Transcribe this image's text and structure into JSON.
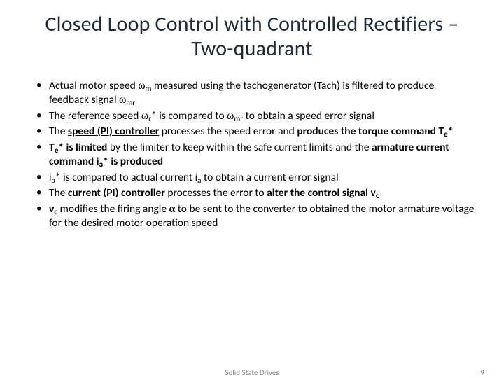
{
  "title": "Closed Loop Control with Controlled Rectifiers – Two-quadrant",
  "bullets": {
    "b1a": "Actual motor speed ",
    "b1_sym1": "ω",
    "b1_sub1": "m",
    "b1b": " measured using the tachogenerator (Tach) is filtered to produce feedback signal ",
    "b1_sym2": "ω",
    "b1_sub2": "mr",
    "b2a": "The reference speed ",
    "b2_sym1": "ω",
    "b2_sub1": "r",
    "b2_star": "*",
    "b2b": " is compared to ",
    "b2_sym2": "ω",
    "b2_sub2": "mr",
    "b2c": " to obtain a speed error signal",
    "b3a": "The ",
    "b3_bu": "speed (PI) controller",
    "b3b": " processes the speed error and ",
    "b3_b2": "produces the torque command ",
    "b3_b3": "T",
    "b3_sub": "e",
    "b3_b4": "*",
    "b4_b1": "T",
    "b4_sub1": "e",
    "b4_b2": "* is limited",
    "b4a": " by the limiter to keep within the safe current limits and the ",
    "b4_b3": "armature current command ",
    "b4_b4": "i",
    "b4_sub2": "a",
    "b4_b5": "* is produced",
    "b5_i1": "i",
    "b5_sub1": "a",
    "b5a": "* is compared to actual current ",
    "b5_i2": "i",
    "b5_sub2": "a",
    "b5b": " to obtain a current error signal",
    "b6a": "The ",
    "b6_bu": "current (PI) controller",
    "b6b": " processes the error to ",
    "b6_b2": "alter the control signal ",
    "b6_b3": "v",
    "b6_sub": "c",
    "b7a": " ",
    "b7_b1": "v",
    "b7_sub": "c",
    "b7b": " modifies the firing angle ",
    "b7_sym": "α",
    "b7c": " to be sent to the converter to obtained the motor armature voltage for the desired motor operation speed"
  },
  "footer_center": "Solid State Drives",
  "footer_page": "9"
}
